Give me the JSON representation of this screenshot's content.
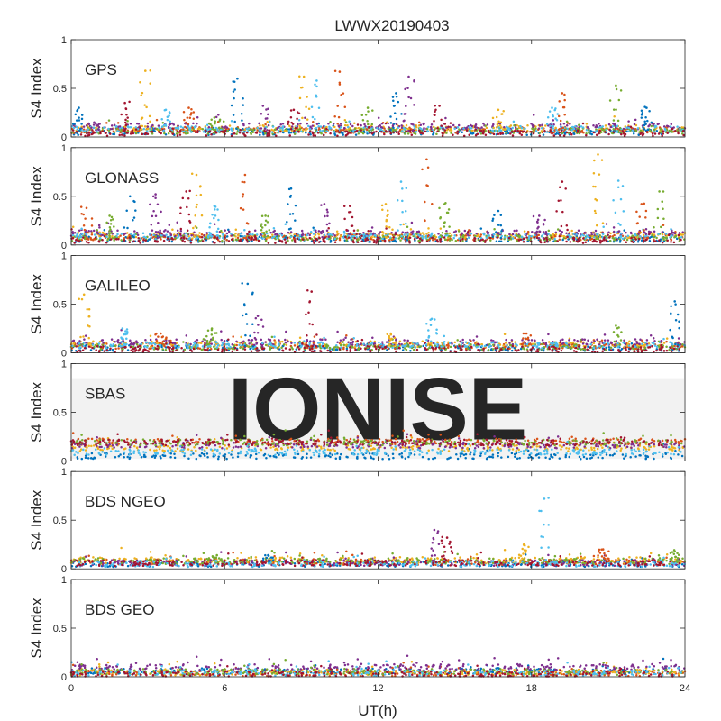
{
  "figure": {
    "title": "LWWX20190403",
    "xlabel": "UT(h)",
    "watermark": "IONISE"
  },
  "colors": {
    "series": [
      "#0072BD",
      "#D95319",
      "#EDB120",
      "#7E2F8E",
      "#77AC30",
      "#4DBEEE",
      "#A2142F"
    ],
    "axis": "#262626",
    "watermark": "#e3e3e3"
  },
  "chart_data": [
    {
      "type": "scatter",
      "title": "GPS",
      "ylabel": "S4 Index",
      "xlim": [
        0,
        24
      ],
      "ylim": [
        0,
        1
      ],
      "xticks": [
        0,
        6,
        12,
        18,
        24
      ],
      "yticks": [
        0,
        0.5,
        1
      ],
      "baseline_s4": [
        0.05,
        0.07,
        0.09,
        0.11,
        0.06,
        0.08,
        0.04
      ],
      "spikes": [
        {
          "x": 0.3,
          "y": 0.3
        },
        {
          "x": 0.9,
          "y": 0.15
        },
        {
          "x": 2.1,
          "y": 0.35
        },
        {
          "x": 2.9,
          "y": 0.68
        },
        {
          "x": 3.7,
          "y": 0.28
        },
        {
          "x": 4.6,
          "y": 0.3
        },
        {
          "x": 5.6,
          "y": 0.2
        },
        {
          "x": 6.5,
          "y": 0.6
        },
        {
          "x": 7.5,
          "y": 0.32
        },
        {
          "x": 8.7,
          "y": 0.28
        },
        {
          "x": 9.1,
          "y": 0.62
        },
        {
          "x": 9.6,
          "y": 0.58
        },
        {
          "x": 10.5,
          "y": 0.67
        },
        {
          "x": 11.6,
          "y": 0.3
        },
        {
          "x": 12.7,
          "y": 0.45
        },
        {
          "x": 13.2,
          "y": 0.62
        },
        {
          "x": 14.4,
          "y": 0.32
        },
        {
          "x": 16.7,
          "y": 0.28
        },
        {
          "x": 18.8,
          "y": 0.3
        },
        {
          "x": 19.2,
          "y": 0.45
        },
        {
          "x": 21.3,
          "y": 0.53
        },
        {
          "x": 22.5,
          "y": 0.3
        }
      ]
    },
    {
      "type": "scatter",
      "title": "GLONASS",
      "ylabel": "S4 Index",
      "xlim": [
        0,
        24
      ],
      "ylim": [
        0,
        1
      ],
      "xticks": [
        0,
        6,
        12,
        18,
        24
      ],
      "yticks": [
        0,
        0.5,
        1
      ],
      "baseline_s4": [
        0.06,
        0.08,
        0.1,
        0.12,
        0.07,
        0.09,
        0.05
      ],
      "spikes": [
        {
          "x": 0.6,
          "y": 0.38
        },
        {
          "x": 1.5,
          "y": 0.3
        },
        {
          "x": 2.3,
          "y": 0.5
        },
        {
          "x": 3.3,
          "y": 0.52
        },
        {
          "x": 4.5,
          "y": 0.55
        },
        {
          "x": 4.9,
          "y": 0.72
        },
        {
          "x": 5.6,
          "y": 0.4
        },
        {
          "x": 6.8,
          "y": 0.72
        },
        {
          "x": 7.6,
          "y": 0.3
        },
        {
          "x": 8.6,
          "y": 0.58
        },
        {
          "x": 9.9,
          "y": 0.42
        },
        {
          "x": 10.9,
          "y": 0.4
        },
        {
          "x": 12.3,
          "y": 0.42
        },
        {
          "x": 12.9,
          "y": 0.65
        },
        {
          "x": 13.9,
          "y": 0.88
        },
        {
          "x": 14.6,
          "y": 0.42
        },
        {
          "x": 16.7,
          "y": 0.35
        },
        {
          "x": 18.3,
          "y": 0.3
        },
        {
          "x": 19.2,
          "y": 0.65
        },
        {
          "x": 20.6,
          "y": 0.93
        },
        {
          "x": 21.4,
          "y": 0.66
        },
        {
          "x": 22.3,
          "y": 0.42
        },
        {
          "x": 23.0,
          "y": 0.55
        }
      ]
    },
    {
      "type": "scatter",
      "title": "GALILEO",
      "ylabel": "S4 Index",
      "xlim": [
        0,
        24
      ],
      "ylim": [
        0,
        1
      ],
      "xticks": [
        0,
        6,
        12,
        18,
        24
      ],
      "yticks": [
        0,
        0.5,
        1
      ],
      "baseline_s4": [
        0.05,
        0.07,
        0.09,
        0.11,
        0.06,
        0.08,
        0.04
      ],
      "spikes": [
        {
          "x": 0.5,
          "y": 0.6
        },
        {
          "x": 2.0,
          "y": 0.25
        },
        {
          "x": 3.5,
          "y": 0.2
        },
        {
          "x": 5.5,
          "y": 0.25
        },
        {
          "x": 6.9,
          "y": 0.71
        },
        {
          "x": 7.3,
          "y": 0.38
        },
        {
          "x": 9.4,
          "y": 0.63
        },
        {
          "x": 12.5,
          "y": 0.2
        },
        {
          "x": 14.1,
          "y": 0.35
        },
        {
          "x": 17.8,
          "y": 0.2
        },
        {
          "x": 21.3,
          "y": 0.28
        },
        {
          "x": 23.6,
          "y": 0.53
        }
      ]
    },
    {
      "type": "scatter",
      "title": "SBAS",
      "ylabel": "S4 Index",
      "xlim": [
        0,
        24
      ],
      "ylim": [
        0,
        1
      ],
      "xticks": [
        0,
        6,
        12,
        18,
        24
      ],
      "yticks": [
        0,
        0.5,
        1
      ],
      "baseline_s4": [
        0.05,
        0.2,
        0.13,
        0.16,
        0.19,
        0.09,
        0.19
      ],
      "spikes": []
    },
    {
      "type": "scatter",
      "title": "BDS NGEO",
      "ylabel": "S4 Index",
      "xlim": [
        0,
        24
      ],
      "ylim": [
        0,
        1
      ],
      "xticks": [
        0,
        6,
        12,
        18,
        24
      ],
      "yticks": [
        0,
        0.5,
        1
      ],
      "baseline_s4": [
        0.05,
        0.07,
        0.09,
        0.06,
        0.08,
        0.05,
        0.06
      ],
      "spikes": [
        {
          "x": 5.7,
          "y": 0.14
        },
        {
          "x": 7.7,
          "y": 0.14
        },
        {
          "x": 14.2,
          "y": 0.4
        },
        {
          "x": 14.7,
          "y": 0.32
        },
        {
          "x": 17.7,
          "y": 0.25
        },
        {
          "x": 18.5,
          "y": 0.72
        },
        {
          "x": 20.8,
          "y": 0.2
        },
        {
          "x": 23.6,
          "y": 0.18
        }
      ]
    },
    {
      "type": "scatter",
      "title": "BDS GEO",
      "ylabel": "S4 Index",
      "xlim": [
        0,
        24
      ],
      "ylim": [
        0,
        1
      ],
      "xticks": [
        0,
        6,
        12,
        18,
        24
      ],
      "yticks": [
        0,
        0.5,
        1
      ],
      "baseline_s4": [
        0.06,
        0.035,
        0.045,
        0.1,
        0.05,
        0.04,
        0.03
      ],
      "spikes": []
    }
  ]
}
